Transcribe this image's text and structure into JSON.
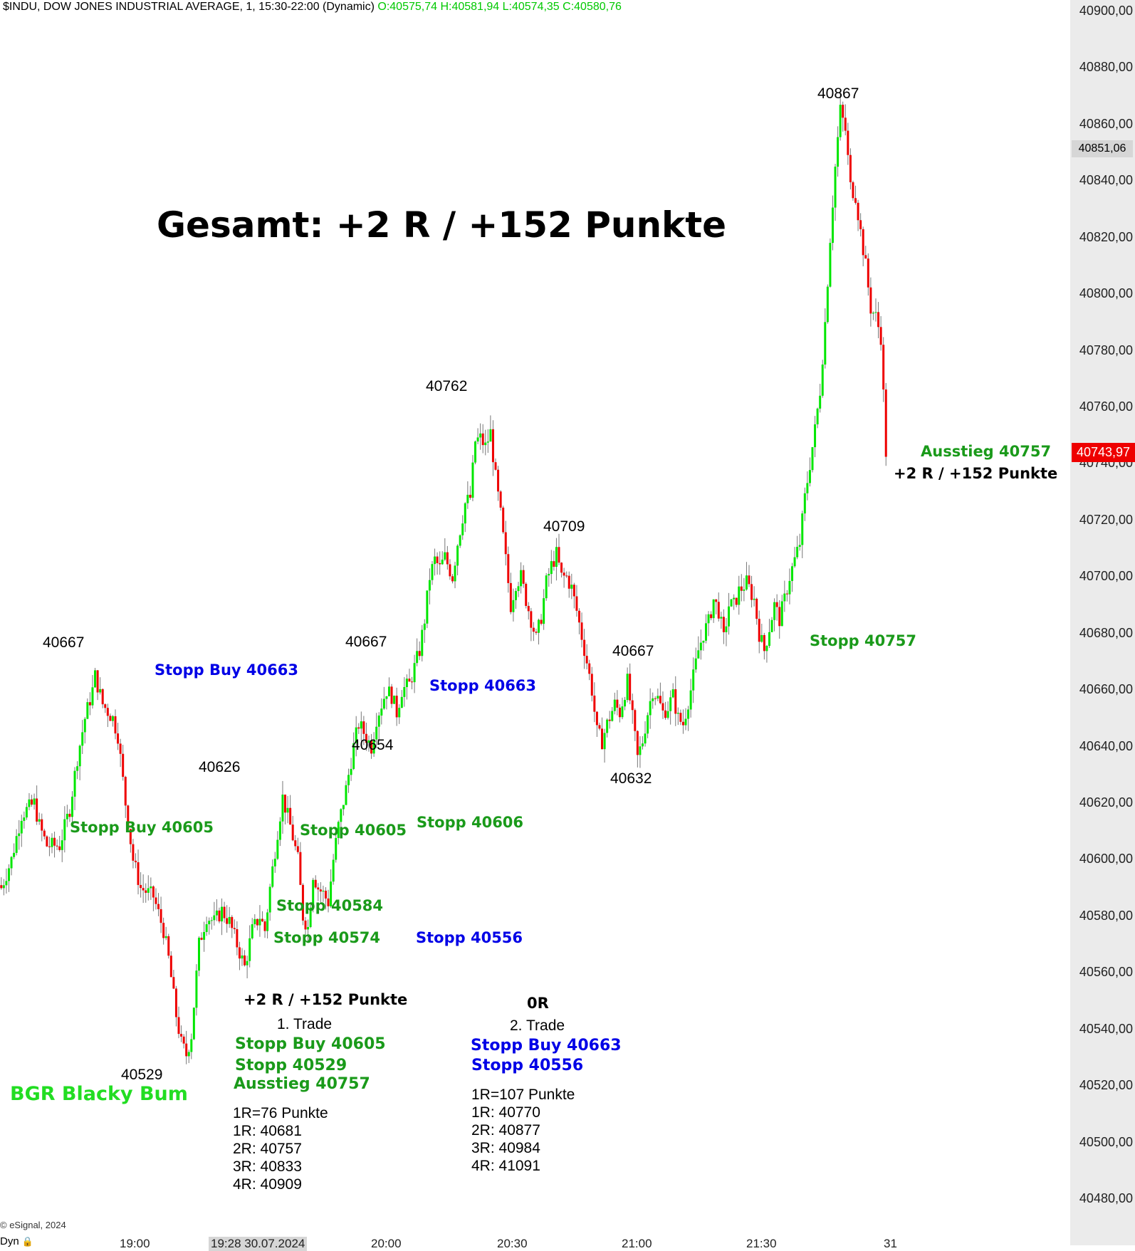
{
  "header": {
    "title": "$INDU, DOW JONES INDUSTRIAL AVERAGE, 1, 15:30-22:00 (Dynamic)",
    "ohlc": "O:40575,74 H:40581,94 L:40574,35 C:40580,76"
  },
  "y_axis": {
    "ticks": [
      "40900,00",
      "40880,00",
      "40860,00",
      "40840,00",
      "40820,00",
      "40800,00",
      "40780,00",
      "40760,00",
      "40740,00",
      "40720,00",
      "40700,00",
      "40680,00",
      "40660,00",
      "40640,00",
      "40620,00",
      "40600,00",
      "40580,00",
      "40560,00",
      "40540,00",
      "40520,00",
      "40500,00",
      "40480,00"
    ],
    "marker_gray": "40851,06",
    "marker_red": "40743,97"
  },
  "x_axis": {
    "ticks": [
      "19:00",
      "19:28 30.07.2024",
      "20:00",
      "20:30",
      "21:00",
      "21:30",
      "31"
    ]
  },
  "footer": {
    "copyright": "© eSignal, 2024",
    "bottom_left": "Dyn"
  },
  "headline": "Gesamt: +2 R / +152 Punkte",
  "swing_labels": [
    "40667",
    "40626",
    "40529",
    "40667",
    "40654",
    "40762",
    "40709",
    "40667",
    "40632",
    "40867"
  ],
  "annotations": {
    "stopp_buy_40663": "Stopp Buy 40663",
    "stopp_40663": "Stopp 40663",
    "stopp_buy_40605": "Stopp Buy 40605",
    "stopp_40605": "Stopp 40605",
    "stopp_40606": "Stopp 40606",
    "stopp_40584": "Stopp 40584",
    "stopp_40574": "Stopp 40574",
    "stopp_40556": "Stopp 40556",
    "stopp_40757": "Stopp 40757",
    "ausstieg": "Ausstieg 40757",
    "result": "+2 R / +152 Punkte"
  },
  "trade1": {
    "result": "+2 R / +152 Punkte",
    "title": "1. Trade",
    "entry": "Stopp Buy 40605",
    "stop": "Stopp 40529",
    "exit": "Ausstieg 40757",
    "r_points": "1R=76 Punkte",
    "r1": "1R: 40681",
    "r2": "2R: 40757",
    "r3": "3R: 40833",
    "r4": "4R: 40909"
  },
  "trade2": {
    "result": "0R",
    "title": "2. Trade",
    "entry": "Stopp Buy 40663",
    "stop": "Stopp 40556",
    "r_points": "1R=107 Punkte",
    "r1": "1R: 40770",
    "r2": "2R: 40877",
    "r3": "3R: 40984",
    "r4": "4R: 41091"
  },
  "brand": "BGR Blacky Bum",
  "colors": {
    "up": "#00e600",
    "down": "#ee0000",
    "brand_green": "#22dd22",
    "annotation_green": "#1a9a1a",
    "annotation_blue": "#0000e6"
  },
  "chart_data": {
    "type": "candlestick",
    "title": "$INDU, DOW JONES INDUSTRIAL AVERAGE, 1, 15:30-22:00 (Dynamic)",
    "ylim": [
      40470,
      40904
    ],
    "x_range": [
      "18:41",
      "21:53"
    ],
    "interval_minutes": 1,
    "last_price": 40743.97,
    "path": [
      [
        0,
        40590
      ],
      [
        4,
        40600
      ],
      [
        8,
        40616
      ],
      [
        13,
        40620
      ],
      [
        15,
        40612
      ],
      [
        18,
        40605
      ],
      [
        23,
        40605
      ],
      [
        27,
        40618
      ],
      [
        30,
        40636
      ],
      [
        33,
        40650
      ],
      [
        36,
        40660
      ],
      [
        37,
        40665
      ],
      [
        40,
        40655
      ],
      [
        44,
        40650
      ],
      [
        46,
        40644
      ],
      [
        49,
        40620
      ],
      [
        52,
        40600
      ],
      [
        55,
        40590
      ],
      [
        60,
        40587
      ],
      [
        64,
        40575
      ],
      [
        66,
        40565
      ],
      [
        69,
        40545
      ],
      [
        71,
        40535
      ],
      [
        73,
        40531
      ],
      [
        75,
        40538
      ],
      [
        78,
        40570
      ],
      [
        81,
        40580
      ],
      [
        84,
        40578
      ],
      [
        87,
        40582
      ],
      [
        90,
        40578
      ],
      [
        93,
        40570
      ],
      [
        96,
        40562
      ],
      [
        99,
        40575
      ],
      [
        102,
        40580
      ],
      [
        104,
        40575
      ],
      [
        106,
        40590
      ],
      [
        109,
        40610
      ],
      [
        111,
        40622
      ],
      [
        114,
        40612
      ],
      [
        117,
        40600
      ],
      [
        119,
        40580
      ],
      [
        121,
        40576
      ],
      [
        123,
        40595
      ],
      [
        125,
        40590
      ],
      [
        127,
        40588
      ],
      [
        129,
        40585
      ],
      [
        131,
        40600
      ],
      [
        133,
        40612
      ],
      [
        136,
        40625
      ],
      [
        139,
        40640
      ],
      [
        141,
        40648
      ],
      [
        143,
        40645
      ],
      [
        146,
        40640
      ],
      [
        148,
        40650
      ],
      [
        150,
        40655
      ],
      [
        152,
        40660
      ],
      [
        154,
        40658
      ],
      [
        156,
        40652
      ],
      [
        158,
        40660
      ],
      [
        161,
        40662
      ],
      [
        163,
        40668
      ],
      [
        165,
        40674
      ],
      [
        167,
        40685
      ],
      [
        169,
        40700
      ],
      [
        171,
        40706
      ],
      [
        173,
        40703
      ],
      [
        175,
        40707
      ],
      [
        178,
        40700
      ],
      [
        180,
        40712
      ],
      [
        183,
        40726
      ],
      [
        185,
        40728
      ],
      [
        187,
        40748
      ],
      [
        189,
        40749
      ],
      [
        191,
        40746
      ],
      [
        193,
        40751
      ],
      [
        195,
        40735
      ],
      [
        197,
        40722
      ],
      [
        199,
        40706
      ],
      [
        201,
        40690
      ],
      [
        203,
        40698
      ],
      [
        205,
        40700
      ],
      [
        207,
        40692
      ],
      [
        209,
        40685
      ],
      [
        211,
        40678
      ],
      [
        213,
        40686
      ],
      [
        215,
        40698
      ],
      [
        217,
        40704
      ],
      [
        219,
        40708
      ],
      [
        221,
        40700
      ],
      [
        223,
        40700
      ],
      [
        225,
        40696
      ],
      [
        227,
        40688
      ],
      [
        229,
        40679
      ],
      [
        231,
        40670
      ],
      [
        233,
        40660
      ],
      [
        235,
        40645
      ],
      [
        237,
        40642
      ],
      [
        239,
        40648
      ],
      [
        242,
        40655
      ],
      [
        244,
        40652
      ],
      [
        247,
        40663
      ],
      [
        249,
        40650
      ],
      [
        251,
        40636
      ],
      [
        253,
        40642
      ],
      [
        255,
        40652
      ],
      [
        257,
        40660
      ],
      [
        259,
        40657
      ],
      [
        261,
        40652
      ],
      [
        263,
        40654
      ],
      [
        265,
        40658
      ],
      [
        267,
        40650
      ],
      [
        269,
        40648
      ],
      [
        272,
        40660
      ],
      [
        275,
        40674
      ],
      [
        277,
        40680
      ],
      [
        279,
        40684
      ],
      [
        281,
        40692
      ],
      [
        283,
        40688
      ],
      [
        285,
        40678
      ],
      [
        287,
        40690
      ],
      [
        289,
        40690
      ],
      [
        291,
        40695
      ],
      [
        294,
        40698
      ],
      [
        297,
        40692
      ],
      [
        299,
        40680
      ],
      [
        301,
        40674
      ],
      [
        303,
        40682
      ],
      [
        305,
        40690
      ],
      [
        307,
        40685
      ],
      [
        309,
        40692
      ],
      [
        311,
        40700
      ],
      [
        313,
        40706
      ],
      [
        315,
        40712
      ],
      [
        317,
        40728
      ],
      [
        319,
        40740
      ],
      [
        321,
        40752
      ],
      [
        323,
        40766
      ],
      [
        325,
        40790
      ],
      [
        327,
        40820
      ],
      [
        329,
        40845
      ],
      [
        331,
        40865
      ],
      [
        333,
        40858
      ],
      [
        335,
        40838
      ],
      [
        337,
        40835
      ],
      [
        339,
        40822
      ],
      [
        341,
        40810
      ],
      [
        343,
        40795
      ],
      [
        345,
        40792
      ],
      [
        347,
        40785
      ],
      [
        349,
        40744
      ]
    ],
    "swing_highs": [
      40667,
      40626,
      40667,
      40762,
      40709,
      40667,
      40867
    ],
    "swing_lows": [
      40529,
      40654,
      40632
    ],
    "horizontal_markers": [
      40851.06,
      40743.97
    ]
  }
}
